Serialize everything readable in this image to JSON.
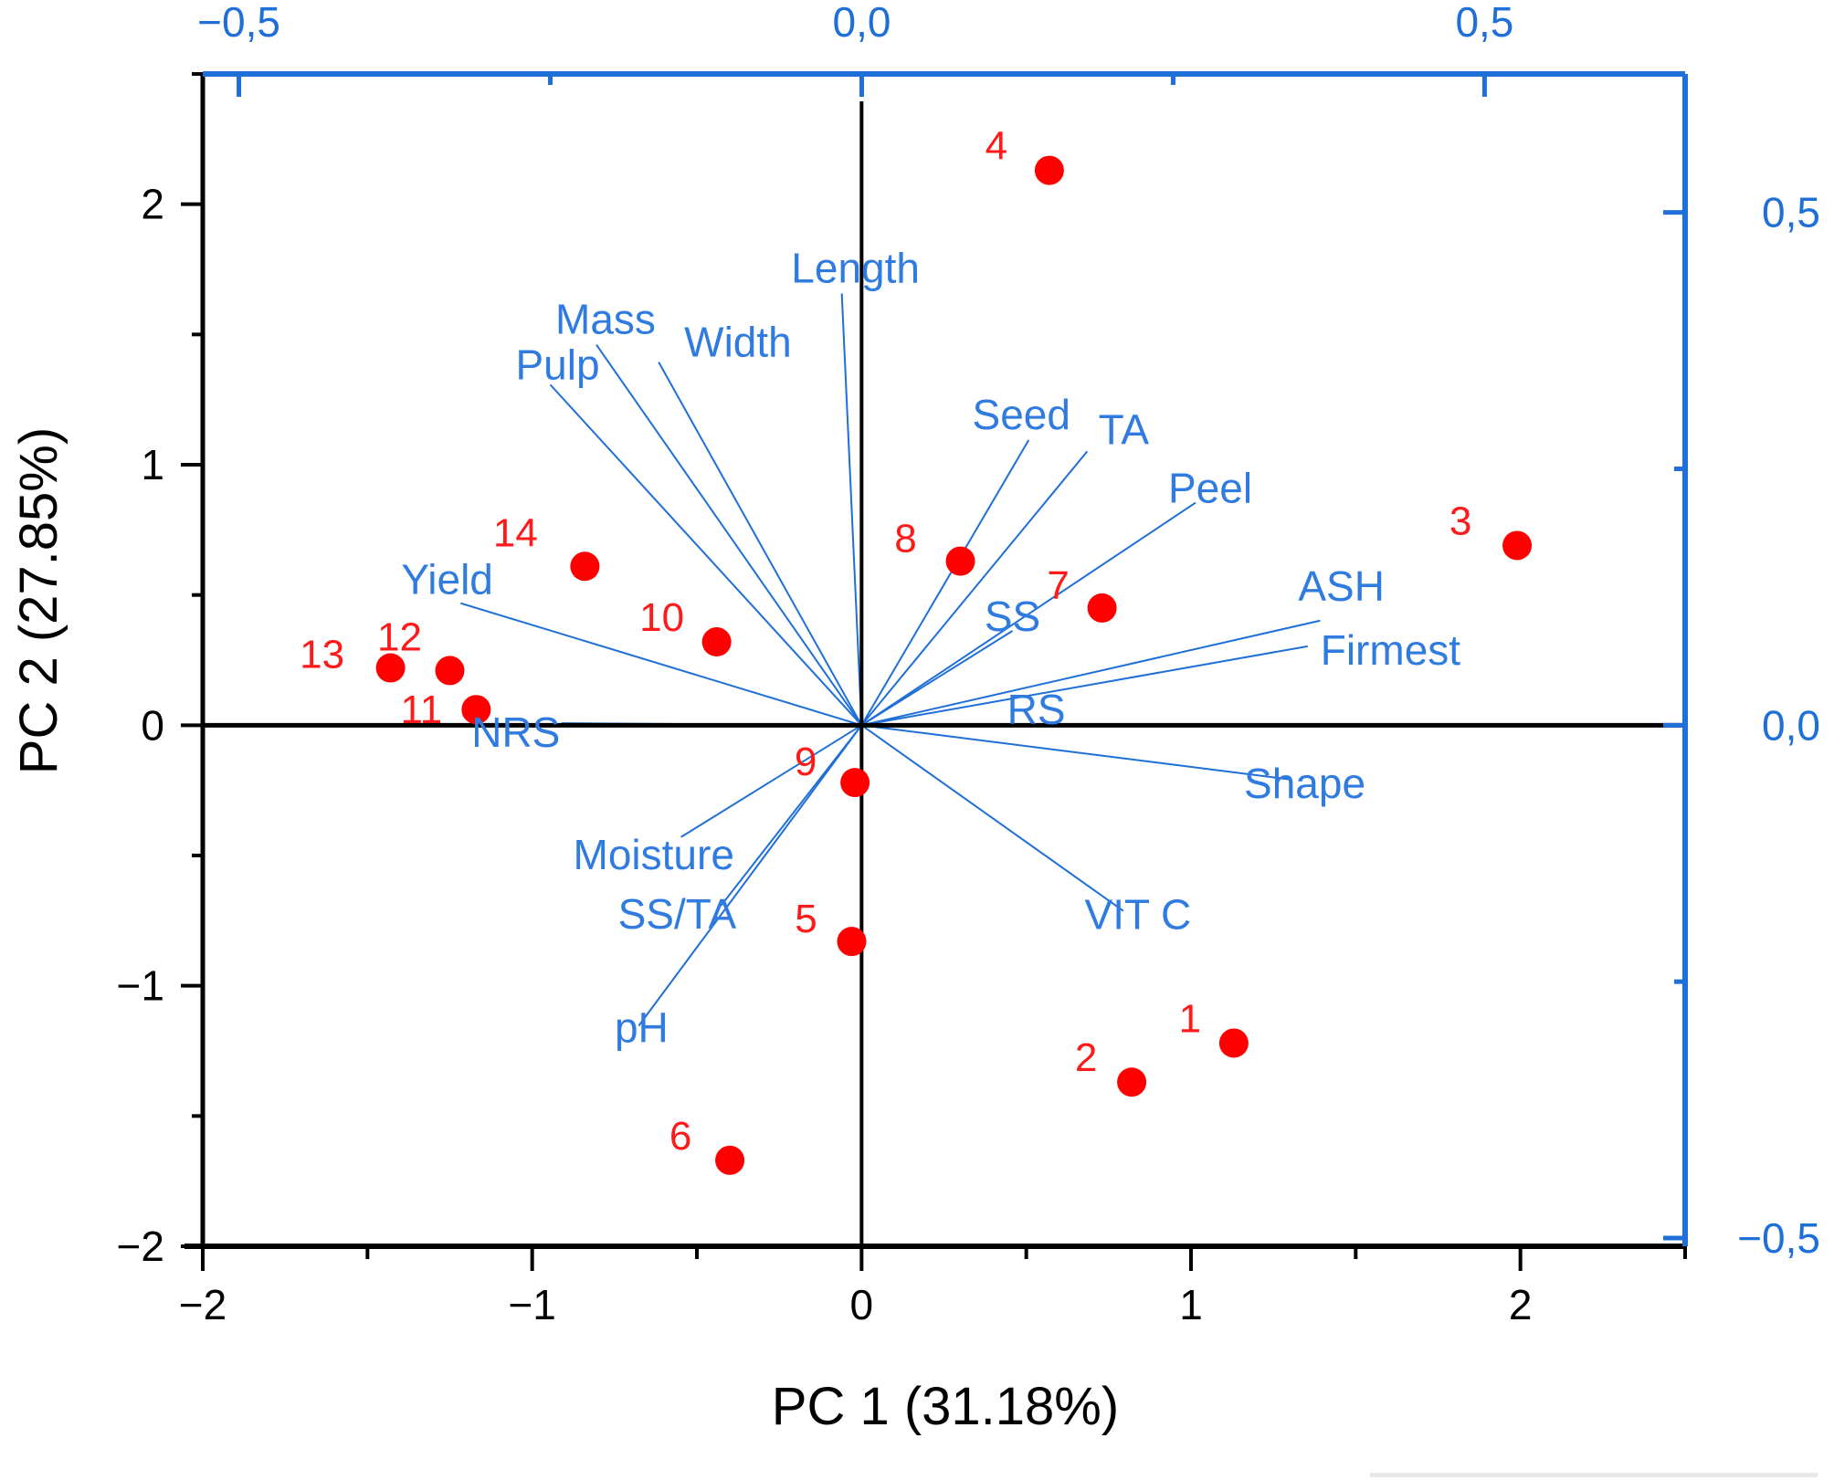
{
  "chart_data": {
    "type": "scatter",
    "subtype": "pca-biplot",
    "title": "",
    "xlabel": "PC 1 (31.18%)",
    "ylabel": "PC 2 (27.85%)",
    "xlim": [
      -2,
      2.5
    ],
    "ylim": [
      -2,
      2.5
    ],
    "x_ticks": [
      -2,
      -1,
      0,
      1,
      2
    ],
    "x_tick_labels": [
      "−2",
      "−1",
      "0",
      "1",
      "2"
    ],
    "y_ticks": [
      -2,
      -1,
      0,
      1,
      2
    ],
    "y_tick_labels": [
      "−2",
      "−1",
      "0",
      "1",
      "2"
    ],
    "loading_axes": {
      "top": {
        "lim": [
          -0.529,
          0.661
        ],
        "ticks": [
          -0.5,
          0.0,
          0.5
        ],
        "tick_labels": [
          "−0,5",
          "0,0",
          "0,5"
        ]
      },
      "right": {
        "lim": [
          -0.508,
          0.635
        ],
        "ticks": [
          -0.5,
          0.0,
          0.5
        ],
        "tick_labels": [
          "−0,5",
          "0,0",
          "0,5"
        ]
      }
    },
    "grid": false,
    "legend": "none",
    "colors": {
      "scores": "#ff0000",
      "score_labels": "#ff1a1a",
      "loadings": "#1f6fd8",
      "loading_labels": "#2f7be0",
      "axes": "#000000"
    },
    "scores": [
      {
        "label": "1",
        "x": 1.13,
        "y": -1.22
      },
      {
        "label": "2",
        "x": 0.82,
        "y": -1.37
      },
      {
        "label": "3",
        "x": 1.99,
        "y": 0.69
      },
      {
        "label": "4",
        "x": 0.57,
        "y": 2.13
      },
      {
        "label": "5",
        "x": -0.03,
        "y": -0.83
      },
      {
        "label": "6",
        "x": -0.4,
        "y": -1.67
      },
      {
        "label": "7",
        "x": 0.73,
        "y": 0.45
      },
      {
        "label": "8",
        "x": 0.3,
        "y": 0.63
      },
      {
        "label": "9",
        "x": -0.02,
        "y": -0.22
      },
      {
        "label": "10",
        "x": -0.44,
        "y": 0.32
      },
      {
        "label": "11",
        "x": -1.17,
        "y": 0.06
      },
      {
        "label": "12",
        "x": -1.25,
        "y": 0.21
      },
      {
        "label": "13",
        "x": -1.43,
        "y": 0.22
      },
      {
        "label": "14",
        "x": -0.84,
        "y": 0.61
      }
    ],
    "loadings": [
      {
        "label": "Length",
        "x": -0.016,
        "y": 0.421
      },
      {
        "label": "Mass",
        "x": -0.213,
        "y": 0.371
      },
      {
        "label": "Width",
        "x": -0.163,
        "y": 0.354
      },
      {
        "label": "Pulp",
        "x": -0.25,
        "y": 0.332
      },
      {
        "label": "Seed",
        "x": 0.134,
        "y": 0.278
      },
      {
        "label": "TA",
        "x": 0.181,
        "y": 0.267
      },
      {
        "label": "Peel",
        "x": 0.268,
        "y": 0.217
      },
      {
        "label": "Yield",
        "x": -0.322,
        "y": 0.119
      },
      {
        "label": "ASH",
        "x": 0.368,
        "y": 0.102
      },
      {
        "label": "SS",
        "x": 0.121,
        "y": 0.092
      },
      {
        "label": "Firmest",
        "x": 0.358,
        "y": 0.077
      },
      {
        "label": "NRS",
        "x": -0.241,
        "y": 0.002
      },
      {
        "label": "RS",
        "x": 0.113,
        "y": 0.001
      },
      {
        "label": "Shape",
        "x": 0.345,
        "y": -0.053
      },
      {
        "label": "Moisture",
        "x": -0.145,
        "y": -0.109
      },
      {
        "label": "SS/TA",
        "x": -0.113,
        "y": -0.176
      },
      {
        "label": "VIT C",
        "x": 0.21,
        "y": -0.181
      },
      {
        "label": "pH",
        "x": -0.179,
        "y": -0.293
      }
    ]
  }
}
